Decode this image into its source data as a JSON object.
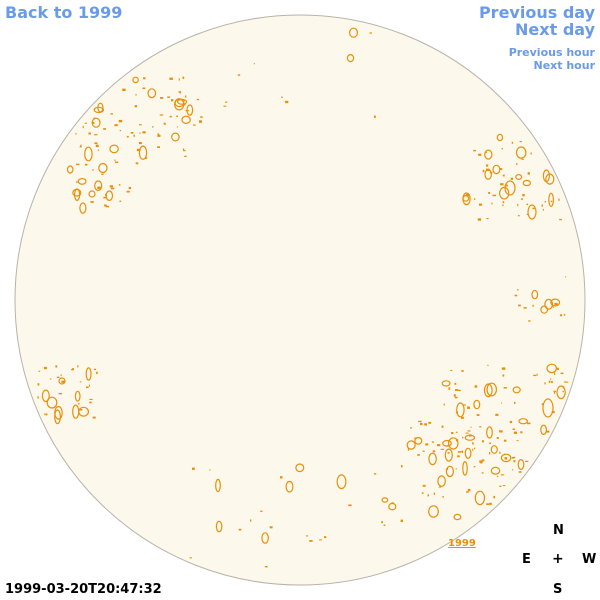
{
  "nav": {
    "back_label": "Back to 1999",
    "prev_day_label": "Previous day",
    "next_day_label": "Next day",
    "prev_hour_label": "Previous hour",
    "next_hour_label": "Next hour"
  },
  "compass": {
    "north": "N",
    "east": "E",
    "center": "+",
    "west": "W",
    "south": "S"
  },
  "timestamp": "1999-03-20T20:47:32",
  "year_label": "1999",
  "colors": {
    "link": "#6a9be8",
    "disk_fill": "#fdf8ec",
    "disk_stroke": "#b8b3a8",
    "contour": "#e8900a"
  }
}
